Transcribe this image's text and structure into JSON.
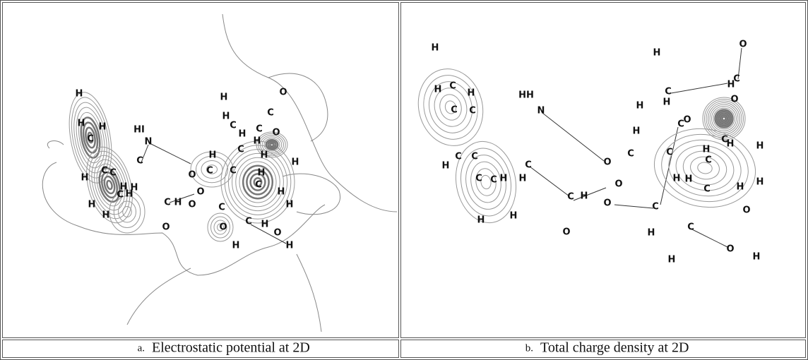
{
  "panels": [
    {
      "label": "a.",
      "caption": "Electrostatic potential at 2D",
      "atoms": [
        "H",
        "H",
        "C",
        "H",
        "HI",
        "N",
        "C",
        "C",
        "H",
        "C",
        "H",
        "H",
        "H",
        "C",
        "H",
        "H",
        "C",
        "H",
        "O",
        "O",
        "O",
        "H",
        "H",
        "O",
        "C",
        "H",
        "C",
        "C",
        "O",
        "H",
        "C",
        "H",
        "O",
        "C",
        "C",
        "H",
        "H",
        "C",
        "H",
        "H",
        "H",
        "C",
        "O",
        "C",
        "H",
        "O",
        "H",
        "H"
      ]
    },
    {
      "label": "b.",
      "caption": "Total charge density at 2D",
      "atoms": [
        "H",
        "H",
        "O",
        "H",
        "C",
        "H",
        "C",
        "C",
        "HH",
        "N",
        "C",
        "C",
        "H",
        "C",
        "C",
        "H",
        "H",
        "C",
        "C",
        "H",
        "O",
        "O",
        "O",
        "H",
        "H",
        "C",
        "H",
        "H",
        "H",
        "C",
        "O",
        "C",
        "O",
        "H",
        "C",
        "O",
        "C",
        "H",
        "C",
        "H",
        "H",
        "C",
        "H",
        "H",
        "C",
        "H",
        "H",
        "O",
        "C",
        "H",
        "C",
        "O",
        "H",
        "H"
      ]
    }
  ]
}
